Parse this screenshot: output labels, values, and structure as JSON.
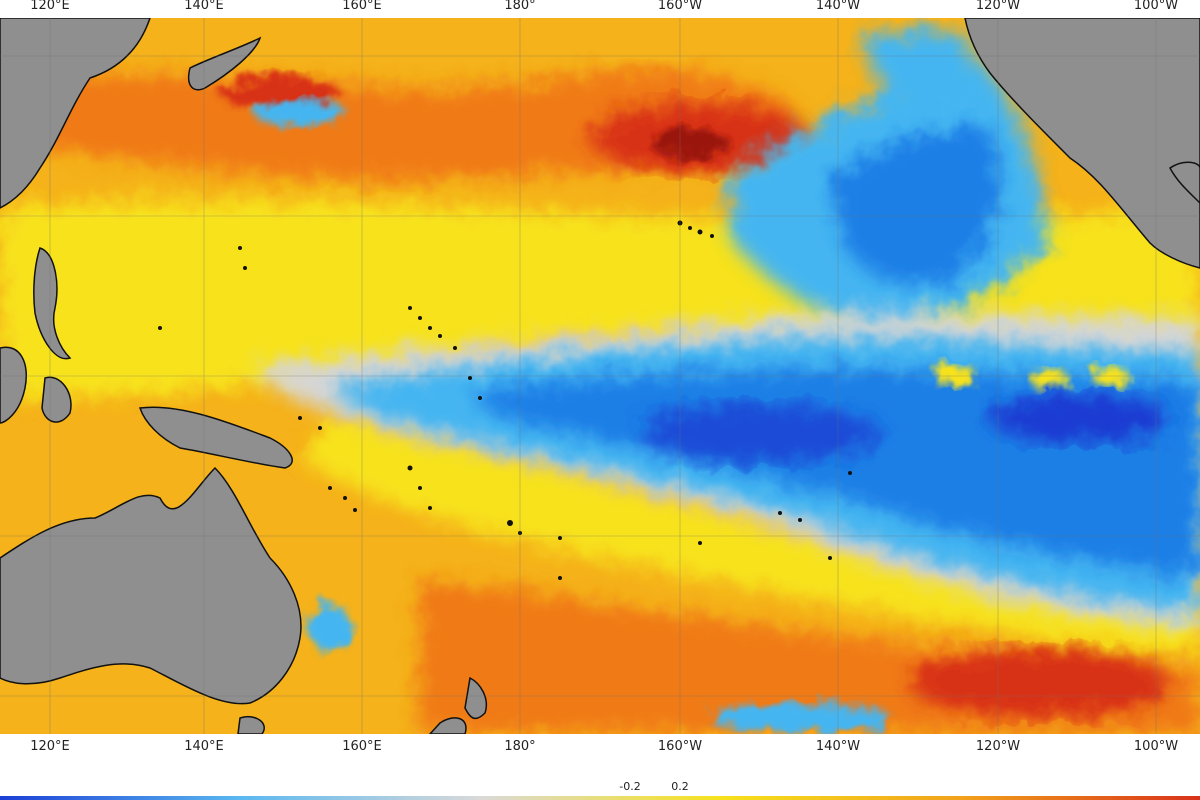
{
  "lon_labels": [
    "120°E",
    "140°E",
    "160°E",
    "180°",
    "160°W",
    "140°W",
    "120°W",
    "100°W"
  ],
  "colorbar_labels": [
    "-0.2",
    "0.2"
  ],
  "colors": {
    "land": "#8f8f8f",
    "cold_deep": "#1a3ad2",
    "cold": "#1f7fe6",
    "cool": "#44b5f1",
    "neutral": "#d6d6d6",
    "warm_light": "#f7e21a",
    "warm": "#f5b21a",
    "warm_strong": "#f07a17",
    "hot": "#d83014",
    "hot_core": "#9a1208",
    "grid": "#6f6f6f"
  },
  "icons": [
    "landmass",
    "island-chain"
  ]
}
